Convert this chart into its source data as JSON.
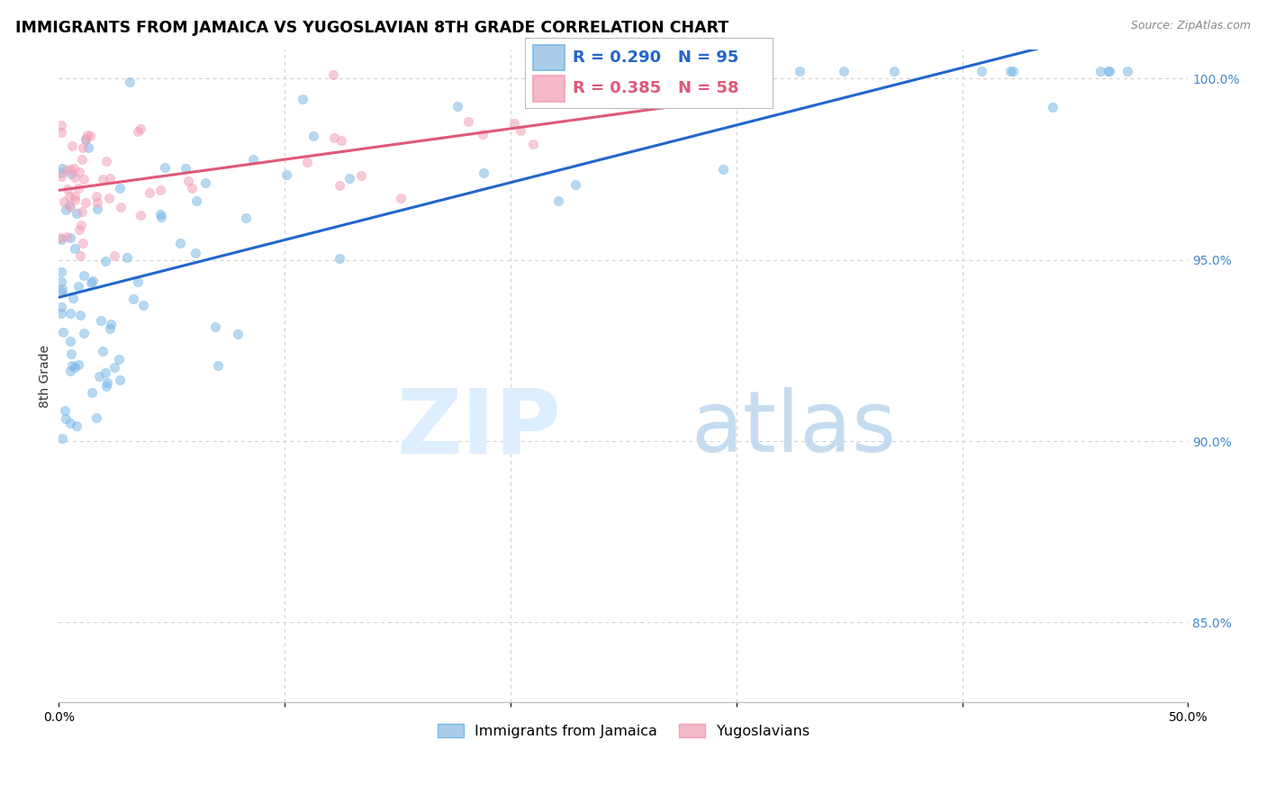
{
  "title": "IMMIGRANTS FROM JAMAICA VS YUGOSLAVIAN 8TH GRADE CORRELATION CHART",
  "source_text": "Source: ZipAtlas.com",
  "ylabel": "8th Grade",
  "xlim": [
    0.0,
    0.5
  ],
  "ylim": [
    0.828,
    1.008
  ],
  "background_color": "#ffffff",
  "grid_color": "#cccccc",
  "jamaica_color": "#7ab8e8",
  "yugoslav_color": "#f4a0b8",
  "jamaica_line_color": "#2266cc",
  "yugoslav_line_color": "#e05878",
  "jamaica_R": 0.29,
  "jamaica_N": 95,
  "yugoslav_R": 0.385,
  "yugoslav_N": 58,
  "legend_jamaica_color": "#aacce8",
  "legend_yugoslav_color": "#f4b8c8",
  "watermark_zip_color": "#ddeeff",
  "watermark_atlas_color": "#c5dcf0",
  "title_fontsize": 12.5,
  "tick_fontsize": 10,
  "axis_label_fontsize": 10,
  "right_tick_color": "#4488cc",
  "scatter_size": 55,
  "scatter_alpha": 0.55,
  "line_width": 2.2,
  "legend_fontsize": 13
}
